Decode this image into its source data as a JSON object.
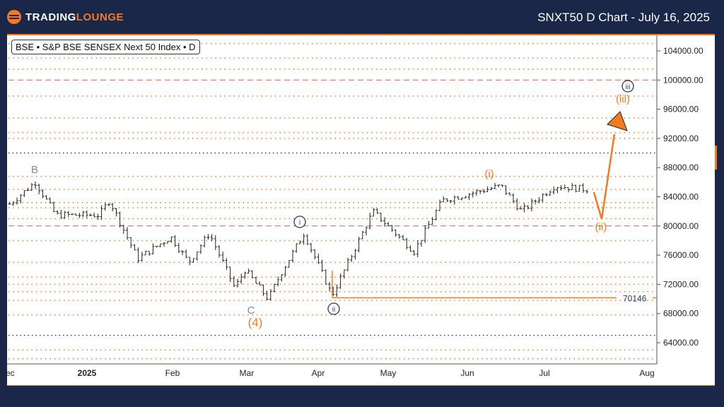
{
  "header": {
    "brand_a": "TRADING",
    "brand_b": "LOUNGE",
    "title": "SNXT50 D Chart - July 16, 2025"
  },
  "symbol_label": "BSE • S&P BSE SENSEX Next 50 Index • D",
  "chart_data": {
    "type": "ohlc",
    "title": "SNXT50 D Chart - July 16, 2025",
    "ylim": [
      61000,
      106000
    ],
    "y_ticks": [
      "104000.00",
      "100000.00",
      "96000.00",
      "92000.00",
      "88000.00",
      "84000.00",
      "80000.00",
      "76000.00",
      "72000.00",
      "68000.00",
      "64000.00"
    ],
    "x_ticks": [
      "Dec",
      "2025",
      "Feb",
      "Mar",
      "Apr",
      "May",
      "Jun",
      "Jul",
      "Aug"
    ],
    "close_keypoints": [
      [
        "2024-12-02",
        83000
      ],
      [
        "2024-12-12",
        86000
      ],
      [
        "2024-12-20",
        81500
      ],
      [
        "2025-01-06",
        81500
      ],
      [
        "2025-01-10",
        83500
      ],
      [
        "2025-01-21",
        75500
      ],
      [
        "2025-02-03",
        78500
      ],
      [
        "2025-02-10",
        75000
      ],
      [
        "2025-02-18",
        79000
      ],
      [
        "2025-02-28",
        71500
      ],
      [
        "2025-03-04",
        74000
      ],
      [
        "2025-03-13",
        70000
      ],
      [
        "2025-03-18",
        73500
      ],
      [
        "2025-03-27",
        79000
      ],
      [
        "2025-04-07",
        70500
      ],
      [
        "2025-04-23",
        82000
      ],
      [
        "2025-05-09",
        76500
      ],
      [
        "2025-05-20",
        83500
      ],
      [
        "2025-06-12",
        85500
      ],
      [
        "2025-06-20",
        82000
      ],
      [
        "2025-07-03",
        85500
      ],
      [
        "2025-07-16",
        85000
      ]
    ],
    "hlines": {
      "red_dashed": [
        100000,
        80000
      ],
      "black_dotted": [
        90000,
        65000
      ],
      "support": 70146
    },
    "support_label": "70146",
    "wave_labels": {
      "B": "B",
      "C": "C",
      "four": "(4)",
      "i_orange": "(i)",
      "i_circle": "i",
      "ii_circle": "ii",
      "ii_orange": "(ii)",
      "iii_circle": "iii",
      "iii_orange": "(iii)"
    },
    "projection": [
      [
        "2025-07-18",
        84500
      ],
      [
        "2025-07-23",
        81000
      ],
      [
        "2025-07-29",
        95000
      ]
    ]
  },
  "colors": {
    "orange": "#f47a1f",
    "navy": "#2c3a63",
    "red": "#e8584d",
    "bars": "#222222"
  }
}
